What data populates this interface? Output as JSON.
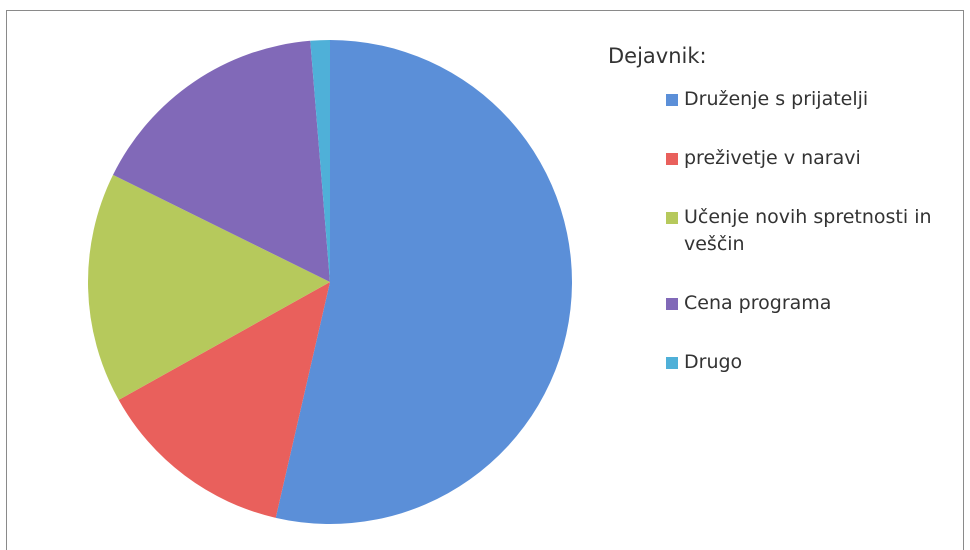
{
  "chart_data": {
    "type": "pie",
    "legend_title": "Dejavnik:",
    "categories": [
      "Druženje s prijatelji",
      "preživetje v naravi",
      "Učenje novih spretnosti in veščin",
      "Cena programa",
      "Drugo"
    ],
    "values": [
      53.6,
      13.3,
      15.4,
      16.4,
      1.3
    ],
    "colors": [
      "#5b8fd8",
      "#e9605c",
      "#b6c95c",
      "#8169b8",
      "#4fb0d8"
    ],
    "legend": "right"
  }
}
